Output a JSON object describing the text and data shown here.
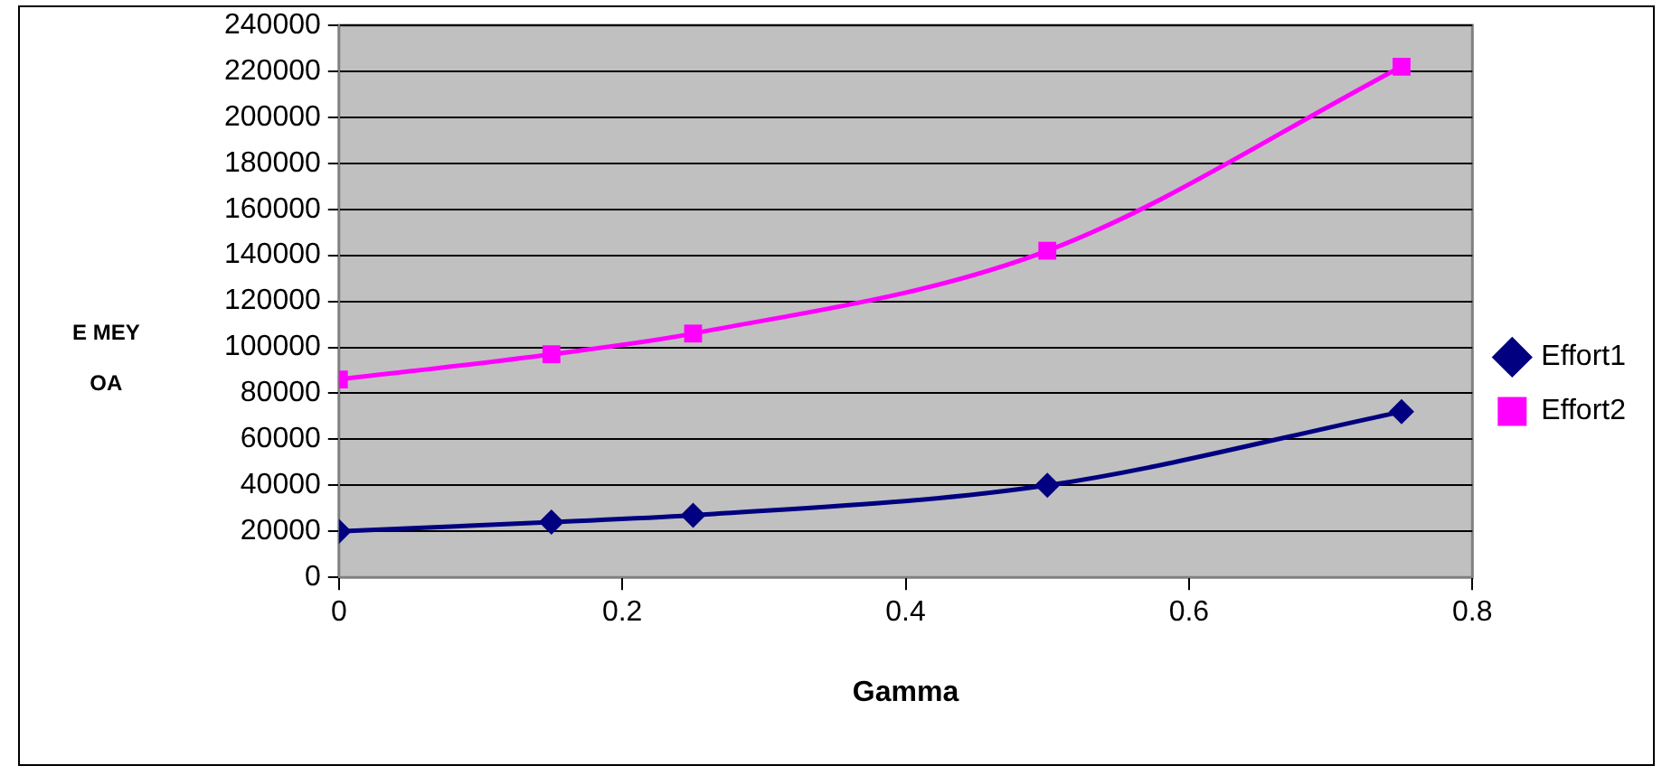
{
  "chart_data": {
    "type": "line",
    "xlabel": "Gamma",
    "ylabel": "E MEY\nOA",
    "x": [
      0,
      0.15,
      0.25,
      0.5,
      0.75
    ],
    "series": [
      {
        "name": "Effort1",
        "color": "#000080",
        "marker": "diamond",
        "values": [
          20000,
          24000,
          27000,
          40000,
          72000
        ]
      },
      {
        "name": "Effort2",
        "color": "#ff00ff",
        "marker": "square",
        "values": [
          86000,
          97000,
          106000,
          142000,
          222000
        ]
      }
    ],
    "xlim": [
      0,
      0.8
    ],
    "xticks": [
      0,
      0.2,
      0.4,
      0.6,
      0.8
    ],
    "ylim": [
      0,
      240000
    ],
    "yticks": [
      0,
      20000,
      40000,
      60000,
      80000,
      100000,
      120000,
      140000,
      160000,
      180000,
      200000,
      220000,
      240000
    ],
    "grid": "y",
    "legend": "right"
  }
}
